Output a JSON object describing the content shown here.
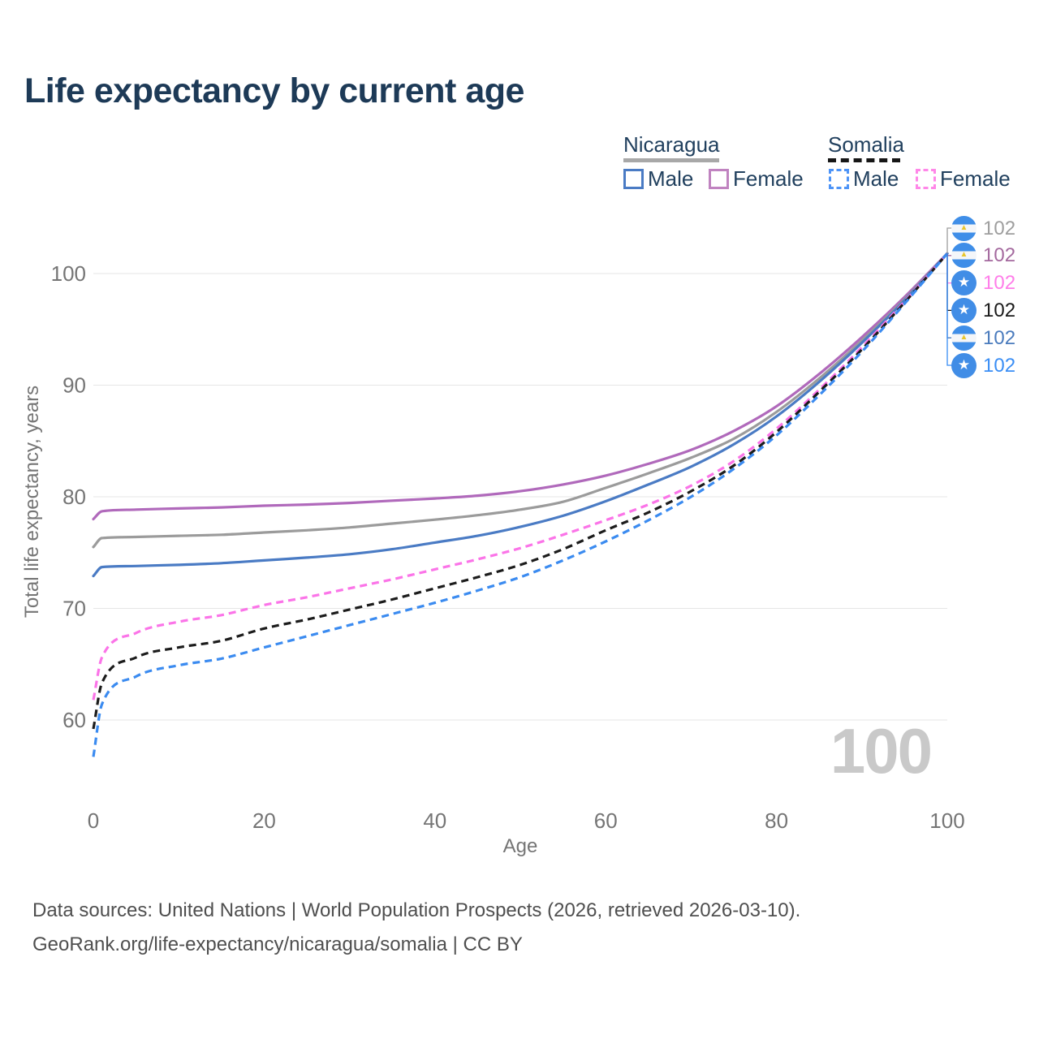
{
  "title": "Life expectancy by current age",
  "legend": {
    "groups": [
      {
        "name": "Nicaragua",
        "line_style": "solid",
        "underline_color": "#a8a8a8",
        "items": [
          {
            "label": "Male",
            "color": "#4a7bc4",
            "dash": false
          },
          {
            "label": "Female",
            "color": "#c083c0",
            "dash": false
          }
        ]
      },
      {
        "name": "Somalia",
        "line_style": "dashed",
        "underline_color": "#161616",
        "items": [
          {
            "label": "Male",
            "color": "#4d94f7",
            "dash": true
          },
          {
            "label": "Female",
            "color": "#ff87e8",
            "dash": true
          }
        ]
      }
    ]
  },
  "watermark_age": "100",
  "end_labels": [
    {
      "flag": "nicaragua",
      "value": "102",
      "color": "#9e9e9e"
    },
    {
      "flag": "nicaragua",
      "value": "102",
      "color": "#a4699e"
    },
    {
      "flag": "somalia",
      "value": "102",
      "color": "#ff7de9"
    },
    {
      "flag": "somalia",
      "value": "102",
      "color": "#1a1a1a"
    },
    {
      "flag": "nicaragua",
      "value": "102",
      "color": "#4a7bbd"
    },
    {
      "flag": "somalia",
      "value": "102",
      "color": "#3a8ef5"
    }
  ],
  "footer": {
    "line1": "Data sources: United Nations | World Population Prospects (2026, retrieved 2026-03-10).",
    "line2": "GeoRank.org/life-expectancy/nicaragua/somalia | CC BY"
  },
  "chart_data": {
    "type": "line",
    "title": "Life expectancy by current age",
    "xlabel": "Age",
    "ylabel": "Total life expectancy, years",
    "xlim": [
      0,
      100
    ],
    "ylim": [
      56,
      104
    ],
    "xticks": [
      0,
      20,
      40,
      60,
      80,
      100
    ],
    "yticks": [
      60,
      70,
      80,
      90,
      100
    ],
    "grid": "horizontal",
    "legend_position": "top-right",
    "x": [
      0,
      1,
      5,
      10,
      15,
      20,
      25,
      30,
      35,
      40,
      45,
      50,
      55,
      60,
      65,
      70,
      75,
      80,
      85,
      90,
      95,
      100
    ],
    "series": [
      {
        "name": "Nicaragua Female",
        "country": "Nicaragua",
        "sex": "Female",
        "style": "solid",
        "color": "#b069bb",
        "values": [
          78.0,
          78.7,
          78.85,
          78.95,
          79.05,
          79.2,
          79.3,
          79.45,
          79.65,
          79.85,
          80.1,
          80.5,
          81.1,
          81.9,
          82.95,
          84.2,
          85.9,
          88.1,
          91.0,
          94.3,
          97.9,
          101.8
        ]
      },
      {
        "name": "Nicaragua",
        "country": "Nicaragua",
        "sex": "All",
        "style": "solid",
        "color": "#9b9b9b",
        "values": [
          75.5,
          76.3,
          76.4,
          76.5,
          76.6,
          76.8,
          77.0,
          77.25,
          77.6,
          77.95,
          78.35,
          78.85,
          79.55,
          80.8,
          82.1,
          83.5,
          85.2,
          87.6,
          90.6,
          94.0,
          97.7,
          101.8
        ]
      },
      {
        "name": "Nicaragua Male",
        "country": "Nicaragua",
        "sex": "Male",
        "style": "solid",
        "color": "#4a7bc4",
        "values": [
          72.9,
          73.7,
          73.8,
          73.9,
          74.05,
          74.3,
          74.55,
          74.85,
          75.3,
          75.9,
          76.5,
          77.3,
          78.3,
          79.6,
          81.1,
          82.7,
          84.7,
          87.2,
          90.3,
          93.8,
          97.6,
          101.8
        ]
      },
      {
        "name": "Somalia Female",
        "country": "Somalia",
        "sex": "Female",
        "style": "dashed",
        "color": "#fb74e8",
        "values": [
          61.8,
          65.6,
          67.8,
          68.8,
          69.4,
          70.3,
          71.0,
          71.8,
          72.6,
          73.5,
          74.4,
          75.4,
          76.6,
          77.9,
          79.3,
          81.0,
          83.2,
          86.1,
          89.6,
          93.4,
          97.5,
          101.8
        ]
      },
      {
        "name": "Somalia",
        "country": "Somalia",
        "sex": "All",
        "style": "dashed",
        "color": "#1c1c1c",
        "values": [
          59.2,
          63.3,
          65.6,
          66.5,
          67.1,
          68.2,
          69.0,
          69.9,
          70.8,
          71.8,
          72.8,
          73.9,
          75.3,
          77.0,
          78.6,
          80.5,
          82.8,
          85.8,
          89.4,
          93.2,
          97.4,
          101.8
        ]
      },
      {
        "name": "Somalia Male",
        "country": "Somalia",
        "sex": "Male",
        "style": "dashed",
        "color": "#3b8bf0",
        "values": [
          56.7,
          61.4,
          63.9,
          64.9,
          65.5,
          66.5,
          67.5,
          68.5,
          69.5,
          70.5,
          71.6,
          72.8,
          74.3,
          76.0,
          77.9,
          80.0,
          82.5,
          85.5,
          89.1,
          93.0,
          97.3,
          101.8
        ]
      }
    ]
  }
}
